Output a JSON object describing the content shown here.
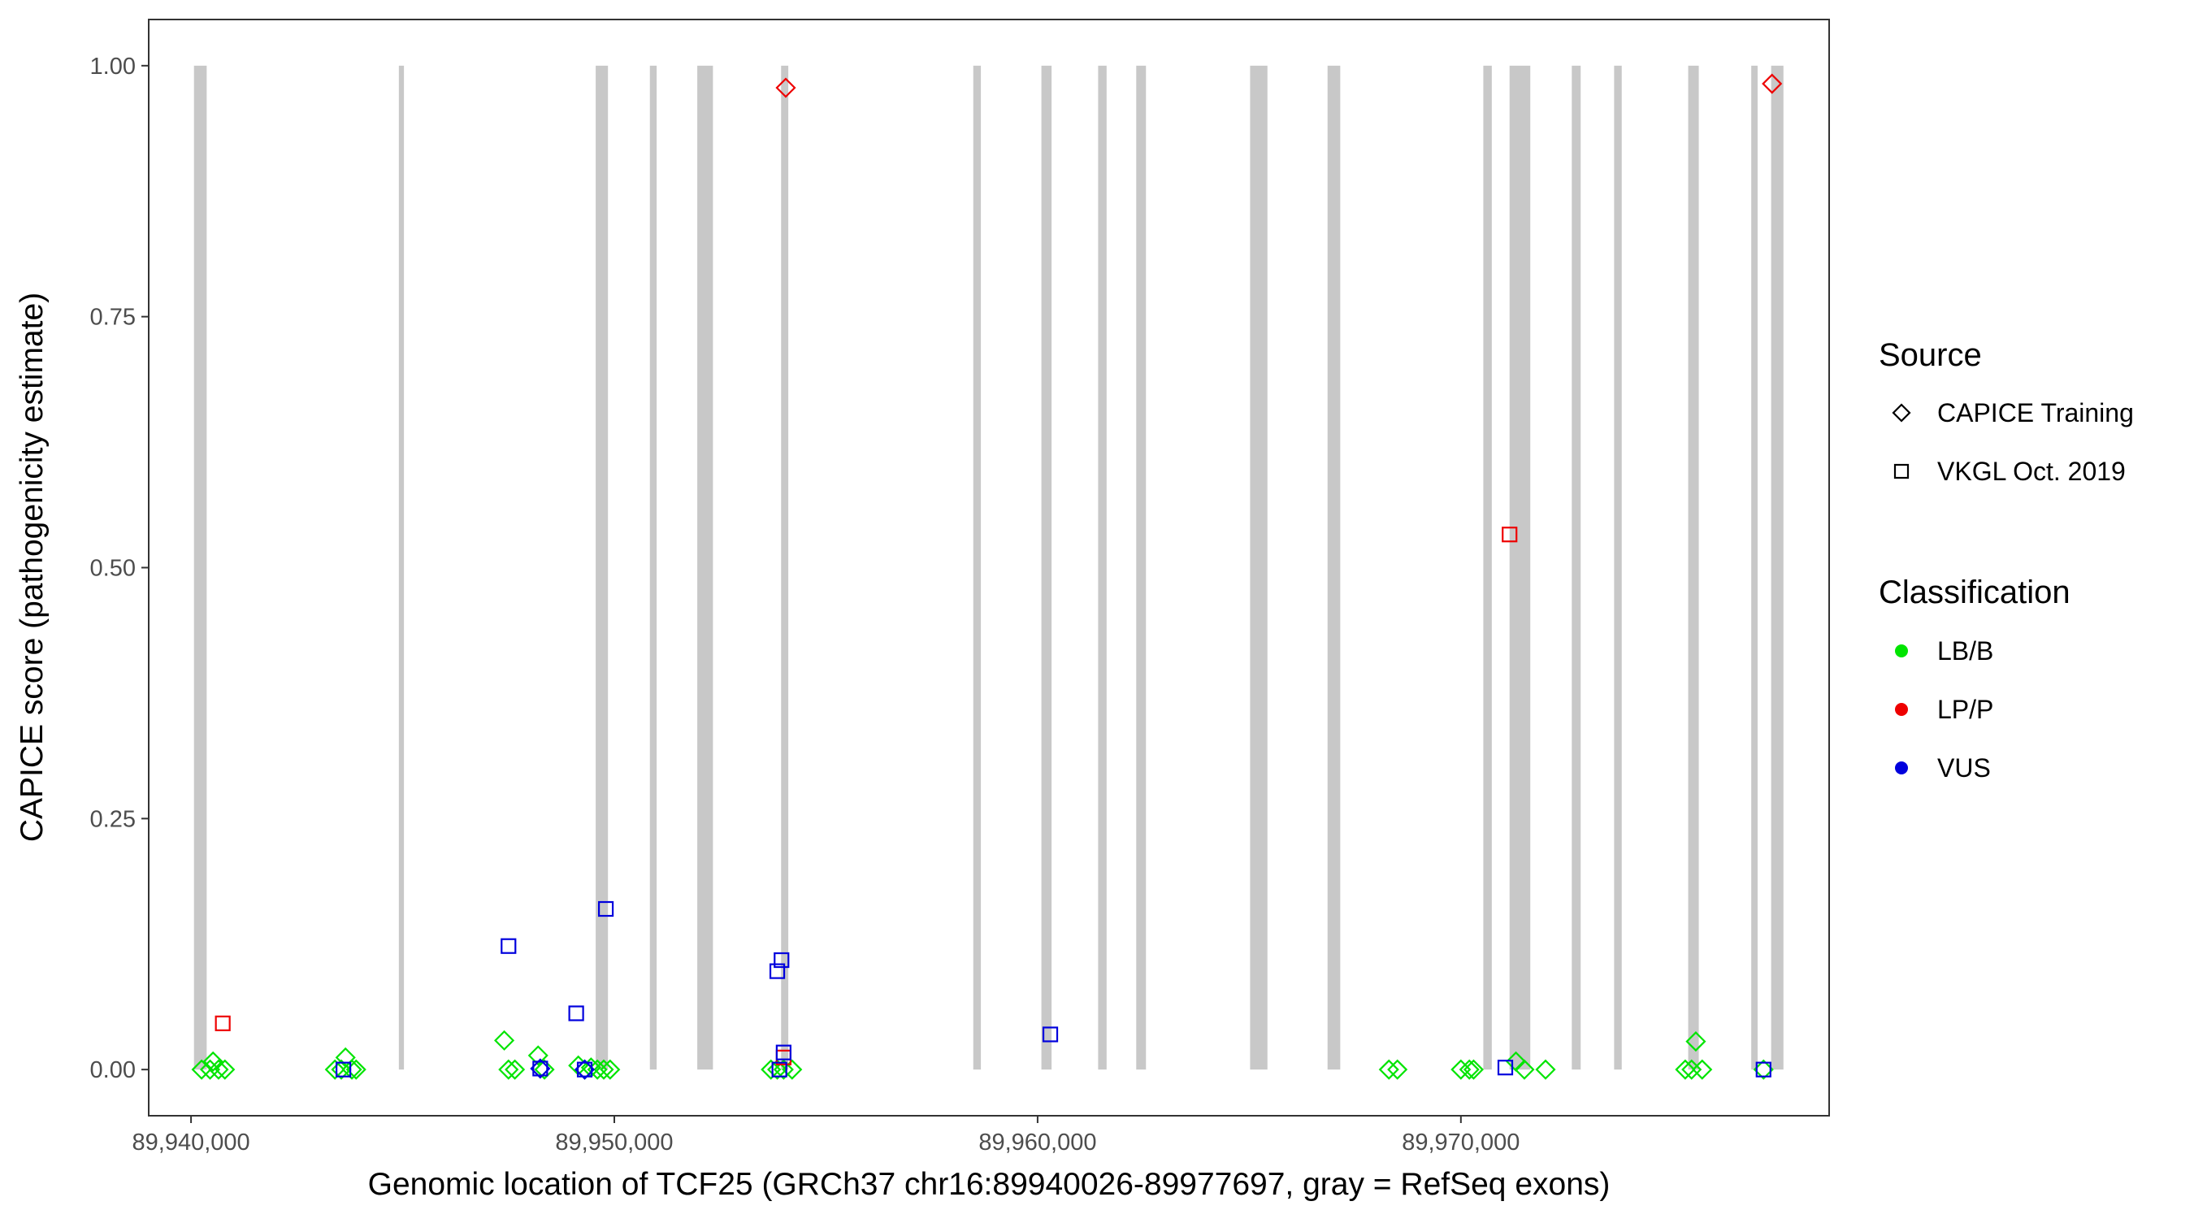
{
  "chart_data": {
    "type": "scatter",
    "xlabel": "Genomic location of TCF25 (GRCh37 chr16:89940026-89977697, gray = RefSeq exons)",
    "ylabel": "CAPICE score (pathogenicity estimate)",
    "xlim": [
      89939000,
      89978700
    ],
    "ylim": [
      -0.046,
      1.046
    ],
    "x_ticks": [
      {
        "value": 89940000,
        "label": "89,940,000"
      },
      {
        "value": 89950000,
        "label": "89,950,000"
      },
      {
        "value": 89960000,
        "label": "89,960,000"
      },
      {
        "value": 89970000,
        "label": "89,970,000"
      }
    ],
    "y_ticks": [
      {
        "value": 0.0,
        "label": "0.00"
      },
      {
        "value": 0.25,
        "label": "0.25"
      },
      {
        "value": 0.5,
        "label": "0.50"
      },
      {
        "value": 0.75,
        "label": "0.75"
      },
      {
        "value": 1.0,
        "label": "1.00"
      }
    ],
    "grid": false,
    "exon_color": "#c8c8c8",
    "exons": [
      [
        89940070,
        89940370
      ],
      [
        89944910,
        89945030
      ],
      [
        89949560,
        89949850
      ],
      [
        89950840,
        89951000
      ],
      [
        89951960,
        89952330
      ],
      [
        89953940,
        89954110
      ],
      [
        89958480,
        89958660
      ],
      [
        89960090,
        89960330
      ],
      [
        89961430,
        89961630
      ],
      [
        89962330,
        89962560
      ],
      [
        89965020,
        89965430
      ],
      [
        89966850,
        89967150
      ],
      [
        89970530,
        89970730
      ],
      [
        89971150,
        89971640
      ],
      [
        89972620,
        89972830
      ],
      [
        89973620,
        89973800
      ],
      [
        89975370,
        89975620
      ],
      [
        89976860,
        89977010
      ],
      [
        89977330,
        89977620
      ]
    ],
    "legend": {
      "placement": "right",
      "source_title": "Source",
      "source_entries": [
        {
          "label": "CAPICE Training",
          "shape": "diamond"
        },
        {
          "label": "VKGL Oct. 2019",
          "shape": "square"
        }
      ],
      "class_title": "Classification",
      "class_entries": [
        {
          "label": "LB/B",
          "color": "#00e400"
        },
        {
          "label": "LP/P",
          "color": "#ee0000"
        },
        {
          "label": "VUS",
          "color": "#0000dd"
        }
      ]
    },
    "colors": {
      "LB/B": "#00e400",
      "LP/P": "#ee0000",
      "VUS": "#0000dd"
    },
    "series": [
      {
        "source": "CAPICE Training",
        "shape": "diamond",
        "classification": "LB/B",
        "points": [
          [
            89940250,
            0.0
          ],
          [
            89940450,
            0.0
          ],
          [
            89940520,
            0.008
          ],
          [
            89940650,
            0.0
          ],
          [
            89940800,
            0.0
          ],
          [
            89943400,
            0.0
          ],
          [
            89943550,
            0.0
          ],
          [
            89943650,
            0.012
          ],
          [
            89943800,
            0.0
          ],
          [
            89943900,
            0.0
          ],
          [
            89947400,
            0.029
          ],
          [
            89947500,
            0.0
          ],
          [
            89947650,
            0.0
          ],
          [
            89948200,
            0.014
          ],
          [
            89948350,
            0.0
          ],
          [
            89949150,
            0.004
          ],
          [
            89949300,
            0.0
          ],
          [
            89949450,
            0.002
          ],
          [
            89949600,
            0.0
          ],
          [
            89949750,
            0.0
          ],
          [
            89949900,
            0.0
          ],
          [
            89953700,
            0.0
          ],
          [
            89953850,
            0.0
          ],
          [
            89954000,
            0.0
          ],
          [
            89954200,
            0.0
          ],
          [
            89968300,
            0.0
          ],
          [
            89968500,
            0.0
          ],
          [
            89970000,
            0.0
          ],
          [
            89970200,
            0.0
          ],
          [
            89970300,
            0.0
          ],
          [
            89971300,
            0.008
          ],
          [
            89971500,
            0.0
          ],
          [
            89972000,
            0.0
          ],
          [
            89975300,
            0.0
          ],
          [
            89975450,
            0.0
          ],
          [
            89975550,
            0.028
          ],
          [
            89975700,
            0.0
          ],
          [
            89977150,
            0.0
          ]
        ]
      },
      {
        "source": "CAPICE Training",
        "shape": "diamond",
        "classification": "LP/P",
        "points": [
          [
            89954050,
            0.978
          ],
          [
            89977350,
            0.982
          ]
        ]
      },
      {
        "source": "CAPICE Training",
        "shape": "diamond",
        "classification": "VUS",
        "points": [
          [
            89948250,
            0.001
          ],
          [
            89949300,
            0.0
          ]
        ]
      },
      {
        "source": "VKGL Oct. 2019",
        "shape": "square",
        "classification": "LP/P",
        "points": [
          [
            89940750,
            0.046
          ],
          [
            89954000,
            0.012
          ],
          [
            89971150,
            0.533
          ]
        ]
      },
      {
        "source": "VKGL Oct. 2019",
        "shape": "square",
        "classification": "VUS",
        "points": [
          [
            89943600,
            0.0
          ],
          [
            89947500,
            0.123
          ],
          [
            89948250,
            0.001
          ],
          [
            89949100,
            0.056
          ],
          [
            89949300,
            0.0
          ],
          [
            89949800,
            0.16
          ],
          [
            89953850,
            0.098
          ],
          [
            89953950,
            0.109
          ],
          [
            89954000,
            0.017
          ],
          [
            89953900,
            0.0
          ],
          [
            89960300,
            0.035
          ],
          [
            89971050,
            0.002
          ],
          [
            89977150,
            0.0
          ]
        ]
      }
    ]
  }
}
